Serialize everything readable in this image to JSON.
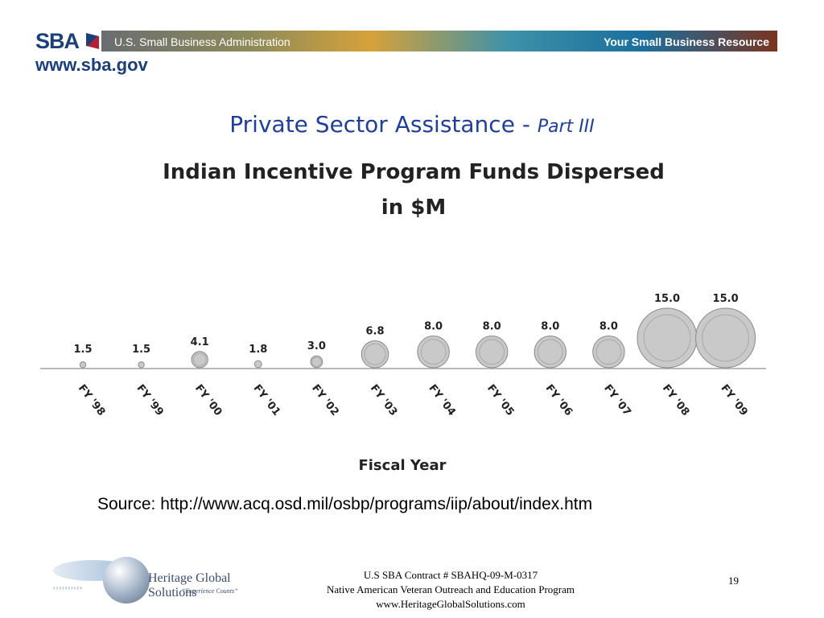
{
  "header": {
    "logo_text": "SBA",
    "agency": "U.S. Small Business Administration",
    "tagline": "Your Small Business Resource",
    "website": "www.sba.gov"
  },
  "slide": {
    "title": "Private Sector Assistance - ",
    "title_suffix": "Part III",
    "source": "Source: http://www.acq.osd.mil/osbp/programs/iip/about/index.htm"
  },
  "chart_data": {
    "type": "bar",
    "title": "Indian Incentive Program Funds Dispersed",
    "title_line2": "in $M",
    "xlabel": "Fiscal Year",
    "ylabel": "",
    "categories": [
      "FY '98",
      "FY '99",
      "FY '00",
      "FY '01",
      "FY '02",
      "FY '03",
      "FY '04",
      "FY '05",
      "FY '06",
      "FY '07",
      "FY '08",
      "FY '09"
    ],
    "values": [
      1.5,
      1.5,
      4.1,
      1.8,
      3.0,
      6.8,
      8.0,
      8.0,
      8.0,
      8.0,
      15.0,
      15.0
    ],
    "value_labels": [
      "1.5",
      "1.5",
      "4.1",
      "1.8",
      "3.0",
      "6.8",
      "8.0",
      "8.0",
      "8.0",
      "8.0",
      "15.0",
      "15.0"
    ],
    "marker": "coin",
    "ylim": [
      0,
      15
    ],
    "grid": false,
    "colors": {
      "coin": "#c9c9c9",
      "coin_edge": "#8a8a8a",
      "baseline": "#9aa3ad",
      "text": "#222222"
    }
  },
  "footer": {
    "logo_name": "Heritage Global Solutions",
    "logo_motto": "“Experience Counts”",
    "contract": "U.S SBA Contract # SBAHQ-09-M-0317",
    "program": "Native American Veteran Outreach and Education Program",
    "website": "www.HeritageGlobalSolutions.com",
    "page_number": "19"
  }
}
